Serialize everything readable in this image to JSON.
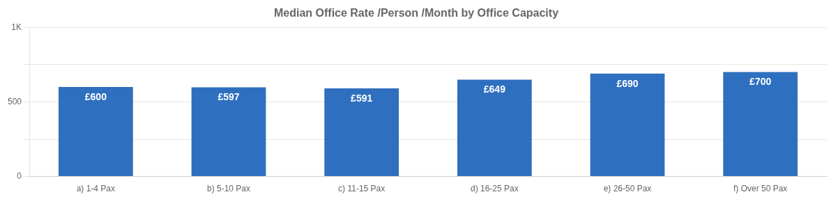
{
  "chart_data": {
    "type": "bar",
    "title": "Median Office Rate /Person /Month by Office Capacity",
    "categories": [
      "a) 1-4 Pax",
      "b) 5-10 Pax",
      "c) 11-15 Pax",
      "d) 16-25 Pax",
      "e) 26-50 Pax",
      "f) Over 50 Pax"
    ],
    "values": [
      600,
      597,
      591,
      649,
      690,
      700
    ],
    "value_labels": [
      "£600",
      "£597",
      "£591",
      "£649",
      "£690",
      "£700"
    ],
    "data_labels": true,
    "color": "#2F6FBF",
    "ylim": [
      0,
      1000
    ],
    "yticks": [
      0,
      {
        "value": 250,
        "label": ""
      },
      500,
      {
        "value": 750,
        "label": ""
      },
      {
        "value": 1000,
        "label": "1K"
      }
    ],
    "grid": true
  }
}
